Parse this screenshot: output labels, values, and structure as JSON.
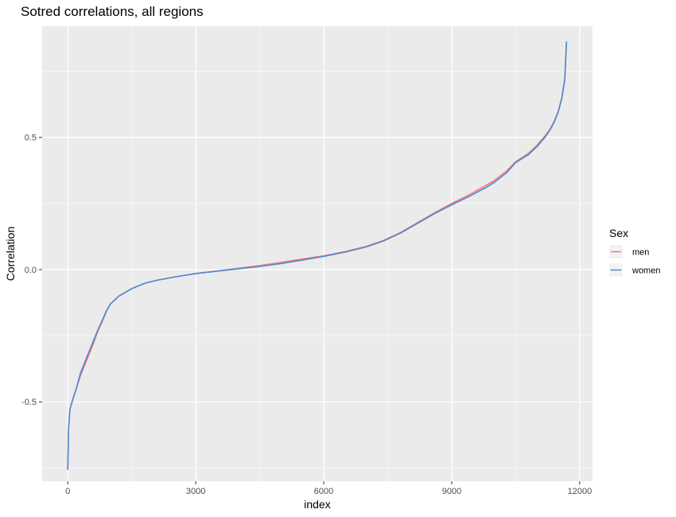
{
  "chart_data": {
    "type": "line",
    "title": "Sotred correlations, all regions",
    "xlabel": "index",
    "ylabel": "Correlation",
    "xlim": [
      -600,
      12300
    ],
    "ylim": [
      -0.8,
      0.92
    ],
    "xticks": [
      0,
      3000,
      6000,
      9000,
      12000
    ],
    "xtick_labels": [
      "0",
      "3000",
      "6000",
      "9000",
      "12000"
    ],
    "yticks": [
      -0.5,
      0.0,
      0.5
    ],
    "ytick_labels": [
      "-0.5",
      "0.0",
      "0.5"
    ],
    "grid": true,
    "legend": {
      "title": "Sex",
      "position": "right"
    },
    "series": [
      {
        "name": "men",
        "color": "#F8766D",
        "x": [
          0,
          20,
          50,
          100,
          200,
          300,
          400,
          500,
          600,
          700,
          800,
          900,
          1000,
          1200,
          1500,
          1800,
          2100,
          2500,
          3000,
          3500,
          4000,
          4500,
          5000,
          5500,
          6000,
          6500,
          7000,
          7400,
          7800,
          8200,
          8600,
          9000,
          9400,
          9800,
          10000,
          10300,
          10500,
          10800,
          11000,
          11200,
          11300,
          11400,
          11500,
          11580,
          11650,
          11690
        ],
        "y": [
          -0.755,
          -0.6,
          -0.53,
          -0.5,
          -0.45,
          -0.4,
          -0.36,
          -0.32,
          -0.28,
          -0.235,
          -0.2,
          -0.16,
          -0.13,
          -0.1,
          -0.072,
          -0.052,
          -0.04,
          -0.028,
          -0.015,
          -0.005,
          0.005,
          0.015,
          0.027,
          0.04,
          0.052,
          0.068,
          0.088,
          0.11,
          0.14,
          0.178,
          0.215,
          0.25,
          0.282,
          0.318,
          0.337,
          0.375,
          0.408,
          0.44,
          0.47,
          0.508,
          0.53,
          0.56,
          0.6,
          0.65,
          0.72,
          0.86
        ]
      },
      {
        "name": "women",
        "color": "#4C8AD6",
        "x": [
          0,
          20,
          50,
          100,
          200,
          300,
          400,
          500,
          600,
          700,
          800,
          900,
          1000,
          1200,
          1500,
          1800,
          2100,
          2500,
          3000,
          3500,
          4000,
          4500,
          5000,
          5500,
          6000,
          6500,
          7000,
          7400,
          7800,
          8200,
          8600,
          9000,
          9400,
          9800,
          10000,
          10300,
          10500,
          10800,
          11000,
          11200,
          11300,
          11400,
          11500,
          11580,
          11650,
          11690
        ],
        "y": [
          -0.755,
          -0.6,
          -0.53,
          -0.5,
          -0.45,
          -0.39,
          -0.35,
          -0.31,
          -0.27,
          -0.23,
          -0.195,
          -0.158,
          -0.13,
          -0.1,
          -0.072,
          -0.052,
          -0.04,
          -0.028,
          -0.015,
          -0.006,
          0.003,
          0.012,
          0.023,
          0.036,
          0.05,
          0.066,
          0.086,
          0.108,
          0.138,
          0.175,
          0.212,
          0.245,
          0.276,
          0.31,
          0.33,
          0.368,
          0.405,
          0.435,
          0.465,
          0.503,
          0.527,
          0.557,
          0.597,
          0.647,
          0.718,
          0.86
        ]
      }
    ]
  }
}
